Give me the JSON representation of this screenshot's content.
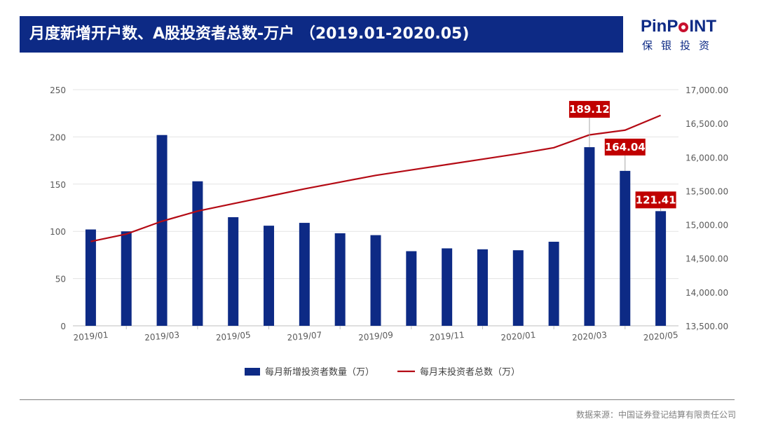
{
  "header": {
    "title": "月度新增开户数、A股投资者总数-万户 （2019.01-2020.05)"
  },
  "logo": {
    "name": "PinPOINT",
    "name_pre": "PinP",
    "name_post": "INT",
    "subtitle": "保银投资",
    "accent": "#c8102e",
    "brand": "#0d2a85"
  },
  "footer": {
    "source": "数据来源：中国证券登记结算有限责任公司"
  },
  "chart_data": {
    "type": "bar+line",
    "months": [
      "2019/01",
      "2019/02",
      "2019/03",
      "2019/04",
      "2019/05",
      "2019/06",
      "2019/07",
      "2019/08",
      "2019/09",
      "2019/10",
      "2019/11",
      "2019/12",
      "2020/01",
      "2020/02",
      "2020/03",
      "2020/04",
      "2020/05"
    ],
    "tick_labels": [
      "2019/01",
      "2019/03",
      "2019/05",
      "2019/07",
      "2019/09",
      "2019/11",
      "2020/01",
      "2020/03",
      "2020/05"
    ],
    "y_left": {
      "min": 0,
      "max": 250,
      "ticks": [
        "0",
        "50",
        "100",
        "150",
        "200",
        "250"
      ]
    },
    "y_right": {
      "min": 13500,
      "max": 17000,
      "ticks": [
        "13,500.00",
        "14,000.00",
        "14,500.00",
        "15,000.00",
        "15,500.00",
        "16,000.00",
        "16,500.00",
        "17,000.00"
      ]
    },
    "series": [
      {
        "name": "每月新增投资者数量（万）",
        "type": "bar",
        "axis": "left",
        "color": "#0d2a85",
        "values": [
          102,
          100,
          202,
          153,
          115,
          106,
          109,
          98,
          96,
          79,
          82,
          81,
          80,
          89,
          189.12,
          164.04,
          121.41
        ]
      },
      {
        "name": "每月末投资者总数（万）",
        "type": "line",
        "axis": "right",
        "color": "#b40a14",
        "values": [
          14750,
          14860,
          15050,
          15200,
          15310,
          15420,
          15530,
          15630,
          15730,
          15810,
          15890,
          15970,
          16050,
          16140,
          16330,
          16400,
          16620
        ]
      }
    ],
    "callouts": [
      {
        "index": 14,
        "label": "189.12"
      },
      {
        "index": 15,
        "label": "164.04"
      },
      {
        "index": 16,
        "label": "121.41"
      }
    ],
    "callout_color": "#c00000",
    "grid": true,
    "legend": "bottom"
  }
}
